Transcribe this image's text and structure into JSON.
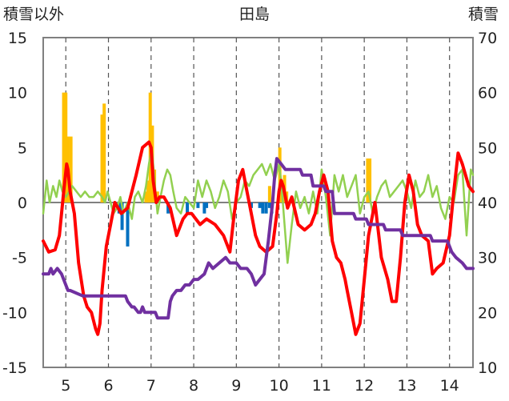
{
  "chart_data": {
    "type": "line",
    "title": "田島",
    "ylabel_left": "積雪以外",
    "ylabel_right": "積雪",
    "x_ticks": [
      "5",
      "6",
      "7",
      "8",
      "9",
      "10",
      "11",
      "12",
      "13",
      "14"
    ],
    "xlim": [
      4.47,
      14.55
    ],
    "ylim_left": [
      -15,
      15
    ],
    "ylim_right": [
      10,
      70
    ],
    "yticks_left": [
      "15",
      "10",
      "5",
      "0",
      "-5",
      "-10",
      "-15"
    ],
    "yticks_right": [
      "70",
      "60",
      "50",
      "40",
      "30",
      "20",
      "10"
    ],
    "grid": "vertical-dashed",
    "colors": {
      "red": "#ff0000",
      "green": "#92d050",
      "purple": "#7030a0",
      "orange_bars": "#ffc000",
      "blue_bars": "#0070c0",
      "zero_line": "#808080",
      "plot_bg": "#ffffff"
    },
    "series": [
      {
        "color": "red",
        "axis": "left",
        "x": [
          4.47,
          4.6,
          4.75,
          4.85,
          4.95,
          5.02,
          5.05,
          5.1,
          5.2,
          5.3,
          5.42,
          5.5,
          5.6,
          5.7,
          5.75,
          5.8,
          5.85,
          5.95,
          6.05,
          6.15,
          6.3,
          6.45,
          6.55,
          6.65,
          6.8,
          6.95,
          7.0,
          7.05,
          7.12,
          7.2,
          7.3,
          7.45,
          7.6,
          7.75,
          7.85,
          7.95,
          8.05,
          8.15,
          8.3,
          8.5,
          8.7,
          8.85,
          8.95,
          9.05,
          9.15,
          9.25,
          9.35,
          9.45,
          9.55,
          9.7,
          9.85,
          9.95,
          10.0,
          10.05,
          10.1,
          10.2,
          10.3,
          10.45,
          10.6,
          10.75,
          10.85,
          10.95,
          11.05,
          11.15,
          11.25,
          11.35,
          11.45,
          11.55,
          11.6,
          11.7,
          11.8,
          11.9,
          12.0,
          12.1,
          12.25,
          12.4,
          12.55,
          12.65,
          12.75,
          12.85,
          12.95,
          13.05,
          13.15,
          13.25,
          13.35,
          13.5,
          13.6,
          13.7,
          13.85,
          14.0,
          14.1,
          14.2,
          14.3,
          14.45,
          14.55
        ],
        "y": [
          -3.5,
          -4.5,
          -4.3,
          -3.0,
          1.0,
          3.5,
          3.0,
          1.0,
          -1.0,
          -5.5,
          -8.5,
          -9.5,
          -10.0,
          -11.5,
          -12.0,
          -11.0,
          -8.0,
          -4.0,
          -2.0,
          0.0,
          -1.0,
          -0.5,
          1.0,
          2.5,
          5.0,
          5.5,
          5.0,
          2.0,
          0.0,
          0.5,
          0.5,
          -0.5,
          -3.0,
          -1.5,
          -1.0,
          -1.0,
          -1.5,
          -2.0,
          -1.5,
          -2.0,
          -3.0,
          -4.5,
          -1.0,
          2.0,
          3.0,
          1.0,
          -1.0,
          -3.0,
          -4.0,
          -4.5,
          -4.0,
          -1.0,
          1.0,
          2.0,
          1.5,
          -0.5,
          0.5,
          -2.0,
          -2.5,
          -2.0,
          -1.0,
          1.0,
          2.5,
          1.0,
          -3.5,
          -5.0,
          -5.5,
          -7.0,
          -8.0,
          -10.0,
          -12.0,
          -11.0,
          -7.0,
          -3.0,
          0.0,
          -5.0,
          -7.0,
          -9.0,
          -9.0,
          -5.0,
          0.0,
          2.5,
          1.0,
          -2.0,
          -3.0,
          -3.5,
          -6.5,
          -6.0,
          -5.5,
          -3.0,
          1.0,
          4.5,
          3.5,
          1.5,
          1.0
        ]
      },
      {
        "color": "green",
        "axis": "left",
        "x": [
          4.47,
          4.55,
          4.62,
          4.7,
          4.78,
          4.85,
          4.92,
          5.0,
          5.08,
          5.15,
          5.25,
          5.35,
          5.45,
          5.55,
          5.65,
          5.75,
          5.85,
          5.92,
          5.98,
          6.05,
          6.12,
          6.2,
          6.28,
          6.35,
          6.45,
          6.55,
          6.62,
          6.7,
          6.8,
          6.88,
          6.95,
          7.02,
          7.08,
          7.15,
          7.22,
          7.3,
          7.38,
          7.45,
          7.52,
          7.6,
          7.7,
          7.8,
          7.9,
          8.0,
          8.1,
          8.2,
          8.3,
          8.4,
          8.5,
          8.6,
          8.7,
          8.8,
          8.9,
          9.0,
          9.1,
          9.2,
          9.3,
          9.4,
          9.5,
          9.6,
          9.7,
          9.8,
          9.9,
          10.0,
          10.05,
          10.12,
          10.2,
          10.3,
          10.4,
          10.5,
          10.6,
          10.7,
          10.8,
          10.9,
          11.0,
          11.1,
          11.2,
          11.3,
          11.4,
          11.5,
          11.6,
          11.7,
          11.8,
          11.9,
          12.0,
          12.1,
          12.2,
          12.3,
          12.4,
          12.5,
          12.6,
          12.7,
          12.8,
          12.9,
          13.0,
          13.1,
          13.2,
          13.3,
          13.4,
          13.5,
          13.6,
          13.7,
          13.8,
          13.9,
          14.0,
          14.1,
          14.2,
          14.3,
          14.4,
          14.5,
          14.55
        ],
        "y": [
          -1.0,
          2.0,
          0.0,
          1.5,
          0.5,
          2.0,
          1.0,
          0.5,
          1.0,
          1.5,
          1.0,
          0.5,
          1.0,
          0.5,
          0.5,
          1.0,
          0.5,
          0.0,
          1.0,
          0.0,
          -1.0,
          -0.5,
          0.5,
          -1.0,
          0.0,
          -1.5,
          0.5,
          1.0,
          0.0,
          1.5,
          3.5,
          5.0,
          2.0,
          -1.0,
          0.5,
          2.0,
          3.0,
          2.5,
          1.0,
          -0.5,
          -1.0,
          0.5,
          0.0,
          -0.5,
          2.0,
          0.5,
          2.0,
          1.0,
          -0.5,
          0.5,
          2.0,
          1.0,
          -1.5,
          0.0,
          0.5,
          2.0,
          1.5,
          2.5,
          3.0,
          3.5,
          2.5,
          3.5,
          2.0,
          3.5,
          2.0,
          -1.5,
          -5.5,
          -2.0,
          1.0,
          -0.5,
          0.5,
          -1.0,
          1.0,
          -1.0,
          3.0,
          0.5,
          -3.0,
          2.5,
          1.0,
          2.5,
          0.5,
          1.5,
          2.5,
          -1.0,
          0.5,
          1.0,
          -1.0,
          0.5,
          1.5,
          2.0,
          0.5,
          1.0,
          1.5,
          2.0,
          1.0,
          -0.5,
          2.0,
          0.5,
          1.0,
          2.5,
          0.5,
          1.5,
          -0.5,
          -1.5,
          0.5,
          0.0,
          2.5,
          3.0,
          -3.0,
          3.0,
          2.5
        ]
      },
      {
        "color": "purple",
        "axis": "right",
        "x": [
          4.47,
          4.6,
          4.65,
          4.7,
          4.8,
          4.9,
          5.05,
          5.1,
          5.4,
          5.45,
          5.8,
          5.85,
          6.4,
          6.45,
          6.55,
          6.6,
          6.7,
          6.75,
          6.8,
          6.85,
          6.9,
          7.1,
          7.15,
          7.4,
          7.45,
          7.5,
          7.6,
          7.7,
          7.8,
          7.9,
          8.0,
          8.1,
          8.25,
          8.35,
          8.45,
          8.6,
          8.75,
          8.85,
          9.0,
          9.1,
          9.25,
          9.35,
          9.45,
          9.55,
          9.65,
          9.75,
          9.85,
          9.9,
          9.95,
          10.05,
          10.15,
          10.5,
          10.55,
          10.75,
          10.8,
          11.05,
          11.1,
          11.25,
          11.3,
          11.75,
          11.8,
          12.05,
          12.1,
          12.45,
          12.5,
          12.85,
          12.9,
          13.55,
          13.6,
          13.95,
          14.0,
          14.05,
          14.15,
          14.3,
          14.4,
          14.55
        ],
        "y": [
          27,
          27,
          28,
          27,
          28,
          27,
          24,
          24,
          23,
          23,
          23,
          23,
          23,
          22,
          21,
          21,
          20,
          20,
          21,
          20,
          20,
          20,
          19,
          19,
          22,
          23,
          24,
          24,
          25,
          25,
          26,
          26,
          27,
          29,
          28,
          29,
          30,
          29,
          29,
          28,
          28,
          27,
          25,
          26,
          27,
          33,
          40,
          45,
          48,
          47,
          46,
          46,
          45,
          45,
          43,
          43,
          42,
          42,
          38,
          38,
          37,
          37,
          36,
          36,
          35,
          35,
          34,
          34,
          33,
          33,
          32,
          31,
          30,
          29,
          28,
          28
        ]
      },
      {
        "color": "orange_bars",
        "axis": "left",
        "type": "bar",
        "x": [
          4.95,
          5.0,
          5.05,
          5.12,
          5.85,
          5.9,
          6.88,
          6.93,
          6.98,
          7.03,
          7.08,
          7.15,
          9.78,
          10.02,
          10.07,
          10.13,
          10.18,
          12.08,
          12.13
        ],
        "y": [
          10.0,
          10.0,
          6.0,
          6.0,
          8.0,
          9.0,
          1.0,
          2.0,
          10.0,
          7.0,
          3.0,
          1.0,
          1.5,
          5.0,
          2.0,
          2.5,
          1.0,
          4.0,
          4.0
        ]
      },
      {
        "color": "blue_bars",
        "axis": "left",
        "type": "bar",
        "x": [
          6.25,
          6.32,
          6.45,
          7.4,
          7.85,
          8.1,
          8.25,
          8.3,
          9.35,
          9.55,
          9.62,
          9.7,
          9.78,
          9.83
        ],
        "y": [
          -1.0,
          -2.5,
          -4.0,
          -1.0,
          -1.0,
          -0.5,
          -1.0,
          -0.5,
          -0.5,
          -0.5,
          -1.0,
          -1.0,
          -0.5,
          -1.0
        ]
      }
    ]
  }
}
